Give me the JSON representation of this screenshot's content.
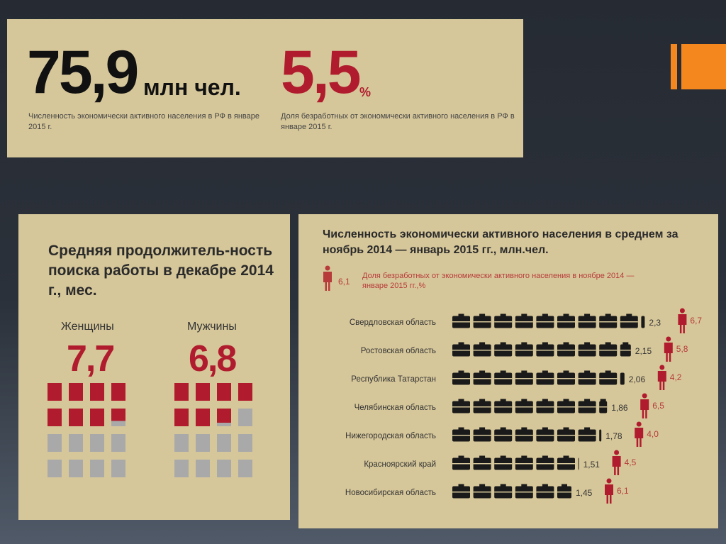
{
  "top": {
    "active_value": "75,9",
    "active_unit": "млн чел.",
    "active_caption": "Численность экономически активного населения в РФ в январе 2015 г.",
    "unemp_value": "5,5",
    "unemp_unit": "%",
    "unemp_caption": "Доля безработных от экономически активного населения в РФ в январе 2015 г."
  },
  "left": {
    "title": "Средняя продолжитель-ность поиска работы в декабре 2014 г., мес.",
    "women_label": "Женщины",
    "women_value": "7,7",
    "men_label": "Мужчины",
    "men_value": "6,8"
  },
  "right": {
    "title": "Численность экономически активного населения в среднем за ноябрь 2014 — январь 2015 гг., млн.чел.",
    "legend_value": "6,1",
    "legend_text": "Доля безработных от экономически активного населения в ноябре 2014 — январе 2015 гг.,%"
  },
  "colors": {
    "panel": "#d6c79a",
    "accent": "#f5871f",
    "red": "#b01c2d",
    "dark": "#1a1a1a",
    "gray": "#a9a9a9"
  },
  "chart_data": [
    {
      "type": "bar",
      "title": "Средняя продолжитель-ность поиска работы в декабре 2014 г., мес.",
      "categories": [
        "Женщины",
        "Мужчины"
      ],
      "values": [
        7.7,
        6.8
      ]
    },
    {
      "type": "bar",
      "title": "Численность экономически активного населения в среднем за ноябрь 2014 — январь 2015 гг., млн.чел.",
      "categories": [
        "Свердловская область",
        "Ростовская область",
        "Республика Татарстан",
        "Челябинская область",
        "Нижегородская область",
        "Красноярский край",
        "Новосибирская область"
      ],
      "series": [
        {
          "values": [
            2.3,
            2.15,
            2.06,
            1.86,
            1.78,
            1.51,
            1.45
          ],
          "labels": [
            "2,3",
            "2,15",
            "2,06",
            "1,86",
            "1,78",
            "1,51",
            "1,45"
          ]
        },
        {
          "name": "Доля безработных от экономически активного населения в ноябре 2014 — январе 2015 гг.,%",
          "values": [
            6.7,
            5.8,
            4.2,
            6.5,
            4.0,
            4.5,
            6.1
          ],
          "labels": [
            "6,7",
            "5,8",
            "4,2",
            "6,5",
            "4,0",
            "4,5",
            "6,1"
          ]
        }
      ]
    }
  ]
}
